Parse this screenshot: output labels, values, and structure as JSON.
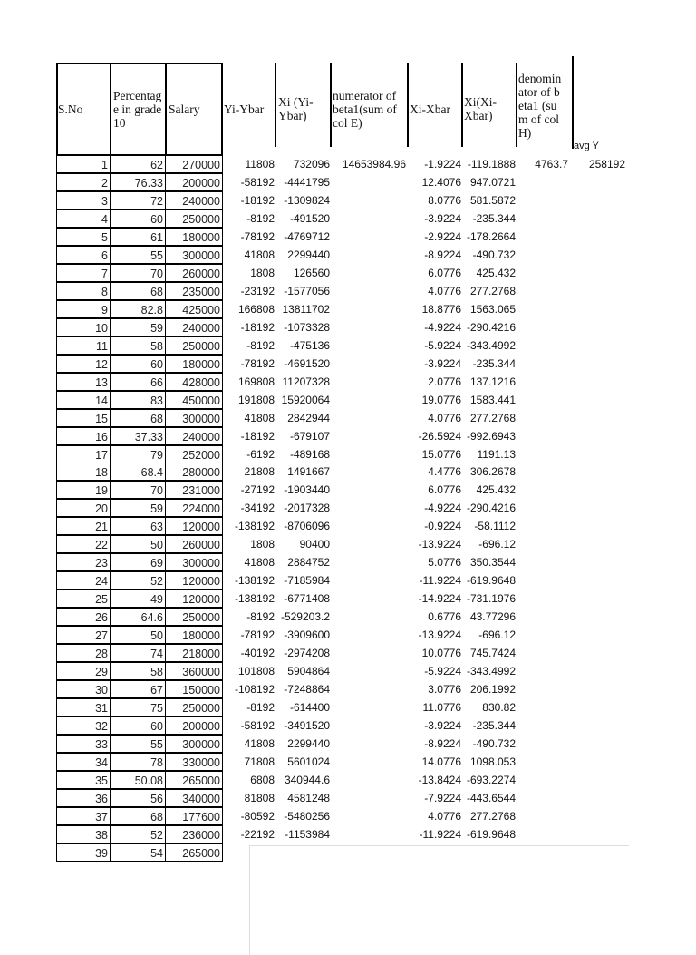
{
  "headers": {
    "sno": "S.No",
    "percentage": "Percentage in grade 10",
    "salary": "Salary",
    "yi_ybar": "Yi-Ybar",
    "xi_yi_ybar": "Xi (Yi-Ybar)",
    "numerator": "numerator of beta1(sum of col E)",
    "xi_xbar": "Xi-Xbar",
    "xi_xi_xbar": "Xi(Xi-Xbar)",
    "denominator": "denominator of beta1 (sum of col H)",
    "avg_y": "avg Y"
  },
  "summary": {
    "numerator": "14653984.96",
    "denominator": "4763.7",
    "avg_y": "258192"
  },
  "rows": [
    [
      "1",
      "62",
      "270000",
      "11808",
      "732096",
      "-1.9224",
      "-119.1888"
    ],
    [
      "2",
      "76.33",
      "200000",
      "-58192",
      "-4441795",
      "12.4076",
      "947.0721"
    ],
    [
      "3",
      "72",
      "240000",
      "-18192",
      "-1309824",
      "8.0776",
      "581.5872"
    ],
    [
      "4",
      "60",
      "250000",
      "-8192",
      "-491520",
      "-3.9224",
      "-235.344"
    ],
    [
      "5",
      "61",
      "180000",
      "-78192",
      "-4769712",
      "-2.9224",
      "-178.2664"
    ],
    [
      "6",
      "55",
      "300000",
      "41808",
      "2299440",
      "-8.9224",
      "-490.732"
    ],
    [
      "7",
      "70",
      "260000",
      "1808",
      "126560",
      "6.0776",
      "425.432"
    ],
    [
      "8",
      "68",
      "235000",
      "-23192",
      "-1577056",
      "4.0776",
      "277.2768"
    ],
    [
      "9",
      "82.8",
      "425000",
      "166808",
      "13811702",
      "18.8776",
      "1563.065"
    ],
    [
      "10",
      "59",
      "240000",
      "-18192",
      "-1073328",
      "-4.9224",
      "-290.4216"
    ],
    [
      "11",
      "58",
      "250000",
      "-8192",
      "-475136",
      "-5.9224",
      "-343.4992"
    ],
    [
      "12",
      "60",
      "180000",
      "-78192",
      "-4691520",
      "-3.9224",
      "-235.344"
    ],
    [
      "13",
      "66",
      "428000",
      "169808",
      "11207328",
      "2.0776",
      "137.1216"
    ],
    [
      "14",
      "83",
      "450000",
      "191808",
      "15920064",
      "19.0776",
      "1583.441"
    ],
    [
      "15",
      "68",
      "300000",
      "41808",
      "2842944",
      "4.0776",
      "277.2768"
    ],
    [
      "16",
      "37.33",
      "240000",
      "-18192",
      "-679107",
      "-26.5924",
      "-992.6943"
    ],
    [
      "17",
      "79",
      "252000",
      "-6192",
      "-489168",
      "15.0776",
      "1191.13"
    ],
    [
      "18",
      "68.4",
      "280000",
      "21808",
      "1491667",
      "4.4776",
      "306.2678"
    ],
    [
      "19",
      "70",
      "231000",
      "-27192",
      "-1903440",
      "6.0776",
      "425.432"
    ],
    [
      "20",
      "59",
      "224000",
      "-34192",
      "-2017328",
      "-4.9224",
      "-290.4216"
    ],
    [
      "21",
      "63",
      "120000",
      "-138192",
      "-8706096",
      "-0.9224",
      "-58.1112"
    ],
    [
      "22",
      "50",
      "260000",
      "1808",
      "90400",
      "-13.9224",
      "-696.12"
    ],
    [
      "23",
      "69",
      "300000",
      "41808",
      "2884752",
      "5.0776",
      "350.3544"
    ],
    [
      "24",
      "52",
      "120000",
      "-138192",
      "-7185984",
      "-11.9224",
      "-619.9648"
    ],
    [
      "25",
      "49",
      "120000",
      "-138192",
      "-6771408",
      "-14.9224",
      "-731.1976"
    ],
    [
      "26",
      "64.6",
      "250000",
      "-8192",
      "-529203.2",
      "0.6776",
      "43.77296"
    ],
    [
      "27",
      "50",
      "180000",
      "-78192",
      "-3909600",
      "-13.9224",
      "-696.12"
    ],
    [
      "28",
      "74",
      "218000",
      "-40192",
      "-2974208",
      "10.0776",
      "745.7424"
    ],
    [
      "29",
      "58",
      "360000",
      "101808",
      "5904864",
      "-5.9224",
      "-343.4992"
    ],
    [
      "30",
      "67",
      "150000",
      "-108192",
      "-7248864",
      "3.0776",
      "206.1992"
    ],
    [
      "31",
      "75",
      "250000",
      "-8192",
      "-614400",
      "11.0776",
      "830.82"
    ],
    [
      "32",
      "60",
      "200000",
      "-58192",
      "-3491520",
      "-3.9224",
      "-235.344"
    ],
    [
      "33",
      "55",
      "300000",
      "41808",
      "2299440",
      "-8.9224",
      "-490.732"
    ],
    [
      "34",
      "78",
      "330000",
      "71808",
      "5601024",
      "14.0776",
      "1098.053"
    ],
    [
      "35",
      "50.08",
      "265000",
      "6808",
      "340944.6",
      "-13.8424",
      "-693.2274"
    ],
    [
      "36",
      "56",
      "340000",
      "81808",
      "4581248",
      "-7.9224",
      "-443.6544"
    ],
    [
      "37",
      "68",
      "177600",
      "-80592",
      "-5480256",
      "4.0776",
      "277.2768"
    ],
    [
      "38",
      "52",
      "236000",
      "-22192",
      "-1153984",
      "-11.9224",
      "-619.9648"
    ],
    [
      "39",
      "54",
      "265000",
      "",
      "",
      "",
      ""
    ]
  ]
}
